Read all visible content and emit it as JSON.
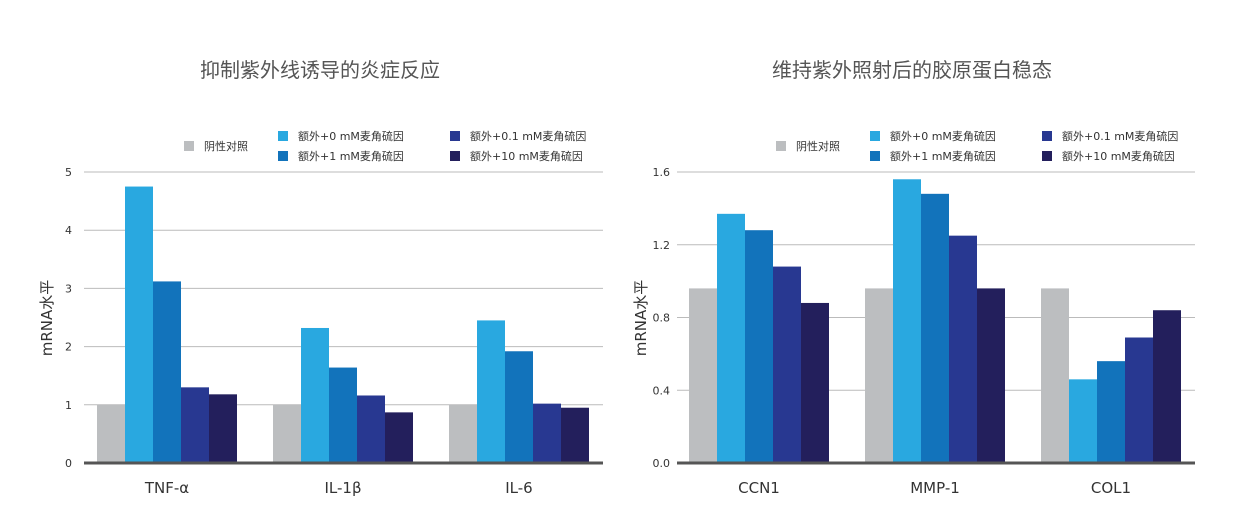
{
  "chart_data": [
    {
      "type": "bar",
      "title": "抑制紫外线诱导的炎症反应",
      "ylabel": "mRNA水平",
      "ylim": [
        0,
        5
      ],
      "yticks": [
        "0",
        "1",
        "2",
        "3",
        "4",
        "5"
      ],
      "categories": [
        "TNF-α",
        "IL-1β",
        "IL-6"
      ],
      "grid": true,
      "legend_position": "top-right",
      "series": [
        {
          "name": "阴性对照",
          "color": "#bcbec0",
          "values": [
            1.0,
            1.0,
            1.0
          ]
        },
        {
          "name": "额外+0 mM麦角硫因",
          "color": "#29a8e0",
          "values": [
            4.75,
            2.32,
            2.45
          ]
        },
        {
          "name": "额外+1 mM麦角硫因",
          "color": "#1273bb",
          "values": [
            3.12,
            1.64,
            1.92
          ]
        },
        {
          "name": "额外+0.1 mM麦角硫因",
          "color": "#283891",
          "values": [
            1.3,
            1.16,
            1.02
          ]
        },
        {
          "name": "额外+10 mM麦角硫因",
          "color": "#231f5c",
          "values": [
            1.18,
            0.87,
            0.95
          ]
        }
      ]
    },
    {
      "type": "bar",
      "title": "维持紫外照射后的胶原蛋白稳态",
      "ylabel": "mRNA水平",
      "ylim": [
        0,
        1.6
      ],
      "yticks": [
        "0.0",
        "0.4",
        "0.8",
        "1.2",
        "1.6"
      ],
      "categories": [
        "CCN1",
        "MMP-1",
        "COL1"
      ],
      "grid": true,
      "legend_position": "top-right",
      "series": [
        {
          "name": "阴性对照",
          "color": "#bcbec0",
          "values": [
            0.96,
            0.96,
            0.96
          ]
        },
        {
          "name": "额外+0 mM麦角硫因",
          "color": "#29a8e0",
          "values": [
            1.37,
            1.56,
            0.46
          ]
        },
        {
          "name": "额外+1 mM麦角硫因",
          "color": "#1273bb",
          "values": [
            1.28,
            1.48,
            0.56
          ]
        },
        {
          "name": "额外+0.1 mM麦角硫因",
          "color": "#283891",
          "values": [
            1.08,
            1.25,
            0.69
          ]
        },
        {
          "name": "额外+10 mM麦角硫因",
          "color": "#231f5c",
          "values": [
            0.88,
            0.96,
            0.84
          ]
        }
      ]
    }
  ]
}
